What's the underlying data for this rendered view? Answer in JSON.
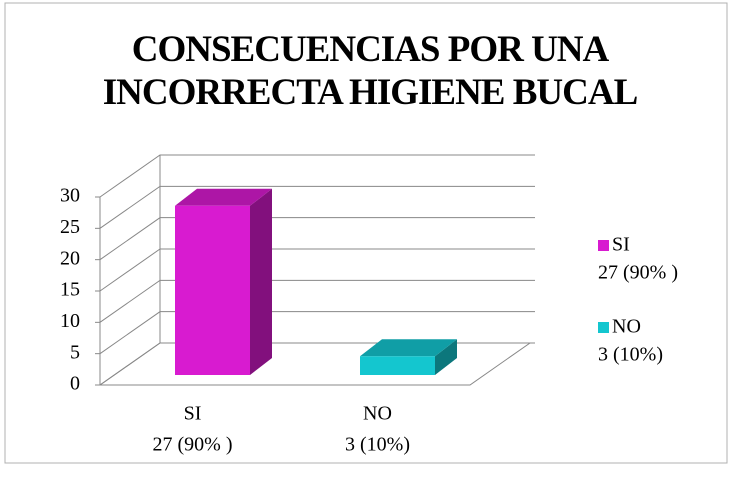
{
  "chart_data": {
    "type": "bar3d",
    "title": "CONSECUENCIAS POR UNA INCORRECTA HIGIENE BUCAL",
    "categories": [
      "SI",
      "NO"
    ],
    "values": [
      27,
      3
    ],
    "value_labels": [
      "27 (90% )",
      "3 (10%)"
    ],
    "colors": [
      "#d81bd0",
      "#14c6cf"
    ],
    "ylim": [
      0,
      30
    ],
    "yticks": [
      0,
      5,
      10,
      15,
      20,
      25,
      30
    ],
    "grid": true,
    "legend": "right"
  }
}
